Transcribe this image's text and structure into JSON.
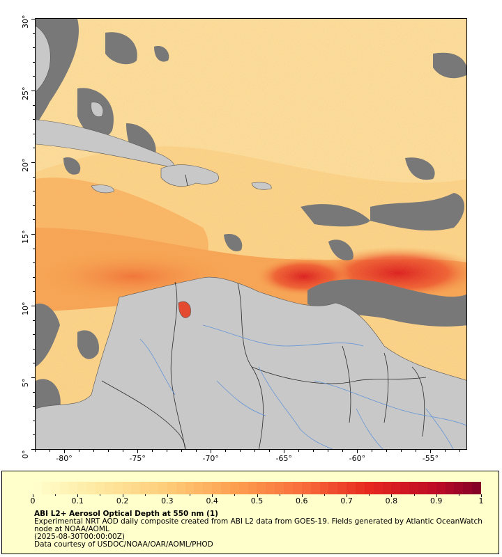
{
  "map": {
    "lat_labels": [
      "30°",
      "25°",
      "20°",
      "15°",
      "10°",
      "5°",
      "0°"
    ],
    "lon_labels": [
      "-80°",
      "-75°",
      "-70°",
      "-65°",
      "-60°",
      "-55°"
    ],
    "lat_range": [
      0,
      30
    ],
    "lon_range": [
      -82,
      -52.5
    ],
    "colors": {
      "land": "#c8c8c8",
      "no_data": "#787878",
      "low_aod": "#fde8a5",
      "mid_aod": "#f6a752",
      "high_aod": "#e0301f",
      "rivers": "#5a8fd8",
      "borders": "#333333"
    }
  },
  "legend": {
    "tick_labels": [
      "0",
      "0.1",
      "0.2",
      "0.3",
      "0.4",
      "0.5",
      "0.6",
      "0.7",
      "0.8",
      "0.9",
      "1"
    ],
    "colorbar_range": [
      0,
      1
    ],
    "title": "ABI L2+ Aerosol Optical Depth at 550 nm (1)",
    "line1": "Experimental NRT AOD daily composite created from ABI L2 data from GOES-19. Fields generated by Atlantic OceanWatch node at NOAA/AOML",
    "line2": "(2025-08-30T00:00:00Z)",
    "line3": "Data courtesy of USDOC/NOAA/OAR/AOML/PHOD"
  }
}
